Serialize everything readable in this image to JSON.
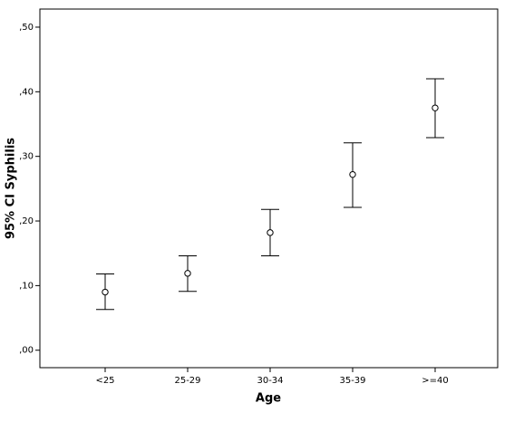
{
  "chart_data": {
    "type": "errorbar",
    "x_label": "Age",
    "y_label": "95% CI Syphilis",
    "categories": [
      "<25",
      "25-29",
      "30-34",
      "35-39",
      ">=40"
    ],
    "values": [
      0.09,
      0.119,
      0.182,
      0.272,
      0.375
    ],
    "lower": [
      0.063,
      0.091,
      0.146,
      0.221,
      0.329
    ],
    "upper": [
      0.118,
      0.146,
      0.218,
      0.321,
      0.42
    ],
    "color": "#000000",
    "ylim": [
      -0.027,
      0.528
    ],
    "yticks": [
      {
        "value": 0,
        "label": ",00"
      },
      {
        "value": 0.1,
        "label": ",10"
      },
      {
        "value": 0.2,
        "label": ",20"
      },
      {
        "value": 0.3,
        "label": ",30"
      },
      {
        "value": 0.4,
        "label": ",40"
      },
      {
        "value": 0.5,
        "label": ",50"
      }
    ]
  }
}
